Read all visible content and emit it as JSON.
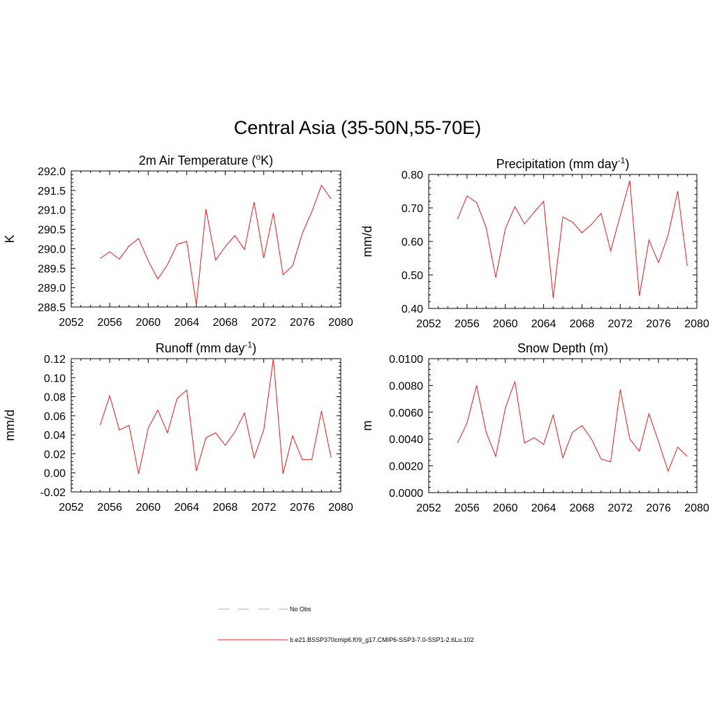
{
  "title": "Central Asia (35-50N,55-70E)",
  "colors": {
    "series": "#e41a1c",
    "obs": "#aaaadd",
    "axis": "#000000"
  },
  "legend": {
    "items": [
      {
        "label": "No Obs",
        "style": "dashed",
        "color": "#aaaadd"
      },
      {
        "label": "b.e21.BSSP370cmip6.f09_g17.CMIP6-SSP3-7.0-SSP1-2.6Lu.102",
        "style": "solid",
        "color": "#e41a1c"
      }
    ]
  },
  "chart_data": [
    {
      "type": "line",
      "title": "2m Air Temperature (",
      "title_sup": "o",
      "title_after": "K)",
      "ylabel": "K",
      "xlim": [
        2052,
        2080
      ],
      "xticks": [
        2052,
        2056,
        2060,
        2064,
        2068,
        2072,
        2076,
        2080
      ],
      "ylim": [
        288.5,
        292.0
      ],
      "yticks": [
        "288.5",
        "289.0",
        "289.5",
        "290.0",
        "290.5",
        "291.0",
        "291.5",
        "292.0"
      ],
      "ytick_values": [
        288.5,
        289.0,
        289.5,
        290.0,
        290.5,
        291.0,
        291.5,
        292.0
      ],
      "x": [
        2055,
        2056,
        2057,
        2058,
        2059,
        2060,
        2061,
        2062,
        2063,
        2064,
        2065,
        2066,
        2067,
        2068,
        2069,
        2070,
        2071,
        2072,
        2073,
        2074,
        2075,
        2076,
        2077,
        2078,
        2079
      ],
      "y": [
        289.75,
        289.92,
        289.73,
        290.07,
        290.26,
        289.69,
        289.22,
        289.59,
        290.11,
        290.19,
        288.55,
        291.02,
        289.71,
        290.05,
        290.34,
        289.98,
        291.2,
        289.76,
        290.92,
        289.33,
        289.56,
        290.39,
        290.95,
        291.63,
        291.28
      ]
    },
    {
      "type": "line",
      "title": "Precipitation (mm day",
      "title_sup": "-1",
      "title_after": ")",
      "ylabel": "mm/d",
      "xlim": [
        2052,
        2080
      ],
      "xticks": [
        2052,
        2056,
        2060,
        2064,
        2068,
        2072,
        2076,
        2080
      ],
      "ylim": [
        0.4,
        0.8
      ],
      "yticks": [
        "0.40",
        "0.50",
        "0.60",
        "0.70",
        "0.80"
      ],
      "ytick_values": [
        0.4,
        0.5,
        0.6,
        0.7,
        0.8
      ],
      "x": [
        2055,
        2056,
        2057,
        2058,
        2059,
        2060,
        2061,
        2062,
        2063,
        2064,
        2065,
        2066,
        2067,
        2068,
        2069,
        2070,
        2071,
        2072,
        2073,
        2074,
        2075,
        2076,
        2077,
        2078,
        2079
      ],
      "y": [
        0.666,
        0.736,
        0.716,
        0.641,
        0.492,
        0.638,
        0.704,
        0.652,
        0.687,
        0.72,
        0.431,
        0.673,
        0.658,
        0.626,
        0.651,
        0.684,
        0.572,
        0.677,
        0.782,
        0.437,
        0.604,
        0.537,
        0.619,
        0.75,
        0.527
      ]
    },
    {
      "type": "line",
      "title": "Runoff (mm day",
      "title_sup": "-1",
      "title_after": ")",
      "ylabel": "mm/d",
      "xlim": [
        2052,
        2080
      ],
      "xticks": [
        2052,
        2056,
        2060,
        2064,
        2068,
        2072,
        2076,
        2080
      ],
      "ylim": [
        -0.02,
        0.12
      ],
      "yticks": [
        "-0.02",
        "0.00",
        "0.02",
        "0.04",
        "0.06",
        "0.08",
        "0.10",
        "0.12"
      ],
      "ytick_values": [
        -0.02,
        0.0,
        0.02,
        0.04,
        0.06,
        0.08,
        0.1,
        0.12
      ],
      "x": [
        2055,
        2056,
        2057,
        2058,
        2059,
        2060,
        2061,
        2062,
        2063,
        2064,
        2065,
        2066,
        2067,
        2068,
        2069,
        2070,
        2071,
        2072,
        2073,
        2074,
        2075,
        2076,
        2077,
        2078,
        2079
      ],
      "y": [
        0.05,
        0.081,
        0.045,
        0.05,
        -0.001,
        0.047,
        0.066,
        0.042,
        0.078,
        0.087,
        0.002,
        0.037,
        0.042,
        0.029,
        0.043,
        0.063,
        0.016,
        0.045,
        0.12,
        -0.001,
        0.039,
        0.014,
        0.014,
        0.065,
        0.016
      ]
    },
    {
      "type": "line",
      "title": "Snow Depth (m)",
      "title_sup": "",
      "title_after": "",
      "ylabel": "m",
      "xlim": [
        2052,
        2080
      ],
      "xticks": [
        2052,
        2056,
        2060,
        2064,
        2068,
        2072,
        2076,
        2080
      ],
      "ylim": [
        0.0,
        0.01
      ],
      "yticks": [
        "0.0000",
        "0.0020",
        "0.0040",
        "0.0060",
        "0.0080",
        "0.0100"
      ],
      "ytick_values": [
        0.0,
        0.002,
        0.004,
        0.006,
        0.008,
        0.01
      ],
      "x": [
        2055,
        2056,
        2057,
        2058,
        2059,
        2060,
        2061,
        2062,
        2063,
        2064,
        2065,
        2066,
        2067,
        2068,
        2069,
        2070,
        2071,
        2072,
        2073,
        2074,
        2075,
        2076,
        2077,
        2078,
        2079
      ],
      "y": [
        0.0037,
        0.0052,
        0.008,
        0.0045,
        0.0027,
        0.0063,
        0.0083,
        0.0037,
        0.0041,
        0.0036,
        0.0058,
        0.0026,
        0.0045,
        0.005,
        0.004,
        0.0025,
        0.0023,
        0.0077,
        0.004,
        0.0031,
        0.0059,
        0.0038,
        0.0016,
        0.0034,
        0.0027
      ]
    }
  ]
}
